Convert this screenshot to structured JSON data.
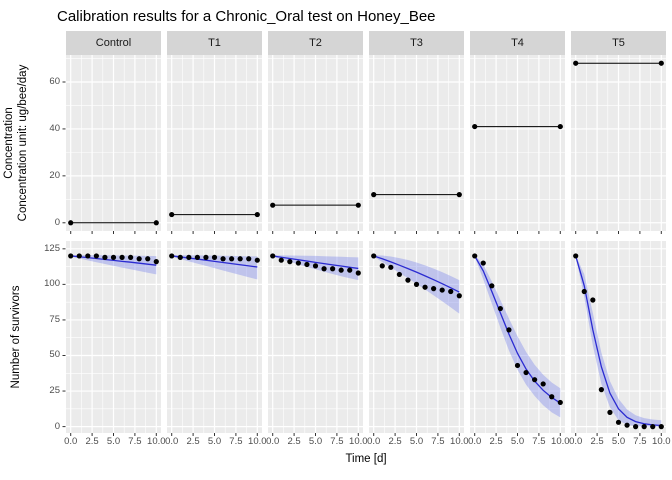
{
  "title": "Calibration results for a Chronic_Oral test on Honey_Bee",
  "axes": {
    "x_title": "Time [d]",
    "y_title_top_line1": "Concentration",
    "y_title_top_line2": "Concentration unit: ug/bee/day",
    "y_title_bottom": "Number of survivors",
    "x_tick_labels": [
      "0.0",
      "2.5",
      "5.0",
      "7.5",
      "10.0"
    ],
    "y_tick_labels_top": [
      "0",
      "20",
      "40",
      "60"
    ],
    "y_tick_labels_bottom": [
      "0",
      "25",
      "50",
      "75",
      "100",
      "125"
    ]
  },
  "facets": [
    "Control",
    "T1",
    "T2",
    "T3",
    "T4",
    "T5"
  ],
  "chart_data": {
    "type": "line",
    "title": "Calibration results for a Chronic_Oral test on Honey_Bee",
    "xlabel": "Time [d]",
    "facets": [
      "Control",
      "T1",
      "T2",
      "T3",
      "T4",
      "T5"
    ],
    "x": [
      0,
      1,
      2,
      3,
      4,
      5,
      6,
      7,
      8,
      9,
      10
    ],
    "x_ticks": [
      0,
      2.5,
      5,
      7.5,
      10
    ],
    "x_minor_ticks": [
      1.25,
      3.75,
      6.25,
      8.75
    ],
    "xlim": [
      0,
      10
    ],
    "grid": true,
    "top_row": {
      "ylabel": "Concentration / Concentration unit: ug/bee/day",
      "ylim": [
        0,
        68
      ],
      "yticks": [
        0,
        20,
        40,
        60
      ],
      "yminor": [
        10,
        30,
        50,
        70
      ],
      "concentration": {
        "Control": 0,
        "T1": 3.5,
        "T2": 7.5,
        "T3": 12,
        "T4": 41,
        "T5": 68
      }
    },
    "bottom_row": {
      "ylabel": "Number of survivors",
      "ylim": [
        0,
        125
      ],
      "yticks": [
        0,
        25,
        50,
        75,
        100,
        125
      ],
      "yminor": [
        12.5,
        37.5,
        62.5,
        87.5,
        112.5
      ],
      "observed": {
        "Control": [
          120,
          120,
          120,
          120,
          119,
          119,
          119,
          119,
          118,
          118,
          116
        ],
        "T1": [
          120,
          119,
          119,
          119,
          119,
          119,
          118,
          118,
          118,
          118,
          117
        ],
        "T2": [
          120,
          117,
          116,
          115,
          114,
          113,
          111,
          111,
          110,
          110,
          108
        ],
        "T3": [
          120,
          113,
          112,
          107,
          103,
          100,
          98,
          97,
          96,
          95,
          92
        ],
        "T4": [
          120,
          115,
          99,
          83,
          68,
          43,
          38,
          33,
          30,
          21,
          17
        ],
        "T5": [
          120,
          95,
          89,
          26,
          10,
          3,
          1,
          0,
          0,
          0,
          0
        ]
      },
      "fit": {
        "Control": [
          120,
          119.4,
          118.8,
          118.2,
          117.5,
          116.9,
          116.2,
          115.6,
          114.9,
          114.2,
          113.5
        ],
        "T1": [
          120,
          119.3,
          118.5,
          117.8,
          117,
          116.2,
          115.4,
          114.6,
          113.8,
          113,
          112.2
        ],
        "T2": [
          120,
          119.1,
          118.2,
          117.3,
          116.4,
          115.5,
          114.6,
          113.7,
          112.9,
          112,
          111.2
        ],
        "T3": [
          120,
          118,
          115.8,
          113.5,
          111.1,
          108.6,
          106,
          103.3,
          100.5,
          97.6,
          94.6
        ],
        "T4": [
          120,
          109.5,
          95,
          80,
          65,
          51.5,
          40.5,
          32,
          25.5,
          20.5,
          16.5
        ],
        "T5": [
          120,
          99,
          68,
          42,
          23.5,
          12.5,
          6.5,
          3.5,
          2,
          1.2,
          0.8
        ]
      },
      "ribbon_upper": {
        "Control": [
          120.5,
          120.6,
          120.6,
          120.6,
          120.5,
          120.4,
          120.3,
          120.2,
          120.1,
          120,
          119.9
        ],
        "T1": [
          120.5,
          120.5,
          120.5,
          120.4,
          120.3,
          120.2,
          120.1,
          120,
          119.9,
          119.8,
          119.7
        ],
        "T2": [
          120.5,
          120.4,
          120.3,
          120.2,
          120.1,
          120,
          119.8,
          119.6,
          119.4,
          119.2,
          119
        ],
        "T3": [
          120.5,
          120.3,
          119.6,
          118.5,
          117.1,
          115.4,
          113.4,
          111.1,
          108.6,
          105.9,
          103
        ],
        "T4": [
          120.5,
          114,
          102,
          89,
          76,
          63.5,
          52.5,
          43.5,
          36.5,
          31,
          27
        ],
        "T5": [
          120.5,
          107,
          80,
          52,
          32,
          19.5,
          12,
          8,
          6,
          5,
          4.5
        ]
      },
      "ribbon_lower": {
        "Control": [
          119.5,
          118.2,
          116.9,
          115.6,
          114.3,
          113,
          111.8,
          110.6,
          109.4,
          108.2,
          107
        ],
        "T1": [
          119.5,
          117.8,
          116.2,
          114.6,
          113,
          111.4,
          109.8,
          108.2,
          106.6,
          105,
          103.5
        ],
        "T2": [
          119.5,
          117.7,
          115.9,
          114.1,
          112.3,
          110.6,
          108.9,
          107.3,
          105.7,
          104.3,
          103
        ],
        "T3": [
          119.5,
          115.7,
          111.9,
          108.1,
          104.3,
          100.4,
          96.4,
          92.3,
          88.1,
          83.8,
          79.4
        ],
        "T4": [
          119.5,
          103.5,
          86.5,
          69.5,
          53.5,
          40,
          29.5,
          21.5,
          15,
          10,
          6.5
        ],
        "T5": [
          119.5,
          91,
          57,
          30,
          13.5,
          4.5,
          1.2,
          0.3,
          0.1,
          0,
          0
        ]
      }
    },
    "style": {
      "fit_line_color": "#2b2bd1",
      "ribbon_color": "rgba(108,120,235,0.35)",
      "point_color": "#000000",
      "concentration_line_color": "#000000",
      "panel_bg": "#ebebeb",
      "strip_bg": "#d5d5d5",
      "grid_color": "#ffffff",
      "tick_color": "#333333",
      "tick_label_color": "#4d4d4d"
    }
  }
}
